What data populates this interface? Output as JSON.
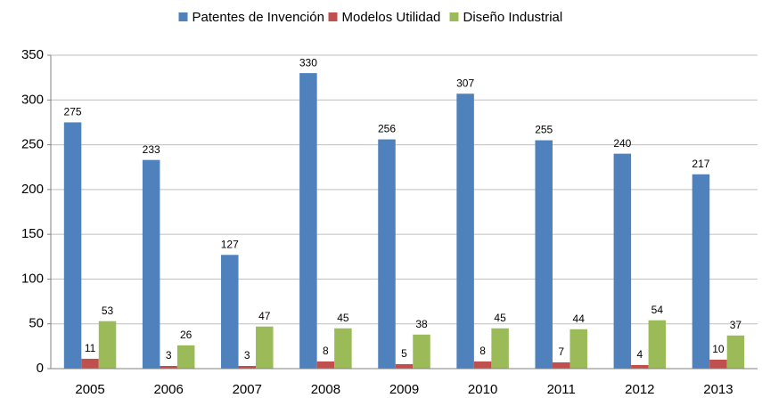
{
  "chart_data": {
    "type": "bar",
    "categories": [
      "2005",
      "2006",
      "2007",
      "2008",
      "2009",
      "2010",
      "2011",
      "2012",
      "2013"
    ],
    "series": [
      {
        "name": "Patentes de Invención",
        "color": "#4f81bd",
        "values": [
          275,
          233,
          127,
          330,
          256,
          307,
          255,
          240,
          217
        ]
      },
      {
        "name": "Modelos Utilidad",
        "color": "#c0504d",
        "values": [
          11,
          3,
          3,
          8,
          5,
          8,
          7,
          4,
          10
        ]
      },
      {
        "name": "Diseño Industrial",
        "color": "#9bbb59",
        "values": [
          53,
          26,
          47,
          45,
          38,
          45,
          44,
          54,
          37
        ]
      }
    ],
    "ylim": [
      0,
      350
    ],
    "yticks": [
      0,
      50,
      100,
      150,
      200,
      250,
      300,
      350
    ],
    "grid": true,
    "legend": "top"
  }
}
